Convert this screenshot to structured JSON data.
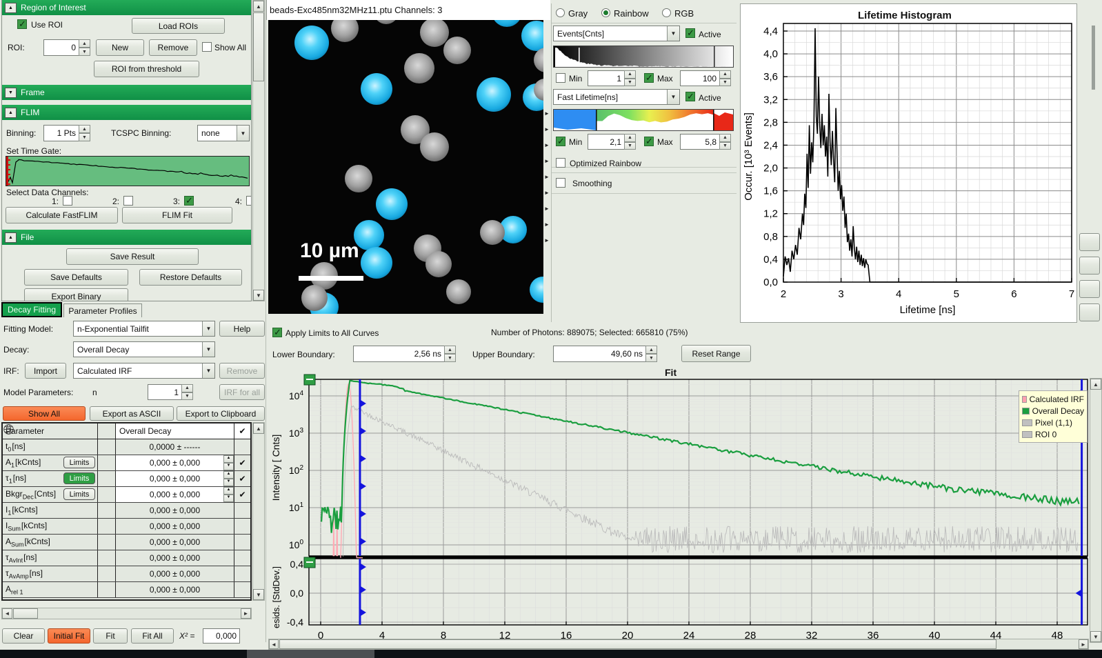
{
  "accent": {
    "green": "#14a04c",
    "orange": "#f4672e",
    "blue_line": "#1414dd"
  },
  "left": {
    "roi": {
      "header": "Region of Interest",
      "use_roi": "Use ROI",
      "load": "Load ROIs",
      "roi_label": "ROI:",
      "roi_value": "0",
      "new": "New",
      "remove": "Remove",
      "show_all": "Show All",
      "threshold": "ROI from threshold"
    },
    "frame": {
      "header": "Frame"
    },
    "flim": {
      "header": "FLIM",
      "binning_label": "Binning:",
      "binning_value": "1 Pts",
      "tcspc_label": "TCSPC Binning:",
      "tcspc_value": "none",
      "time_gate_label": "Set Time Gate:",
      "channels_label": "Select Data Channels:",
      "channels": [
        {
          "label": "1:",
          "checked": false
        },
        {
          "label": "2:",
          "checked": false
        },
        {
          "label": "3:",
          "checked": true
        },
        {
          "label": "4:",
          "checked": false
        }
      ],
      "calc_fastflim": "Calculate FastFLIM",
      "flim_fit": "FLIM Fit"
    },
    "file": {
      "header": "File",
      "save_result": "Save Result",
      "save_defaults": "Save Defaults",
      "restore_defaults": "Restore Defaults",
      "export_binary": "Export Binary"
    },
    "tabs": [
      {
        "label": "Decay Fitting",
        "selected": true
      },
      {
        "label": "Parameter Profiles",
        "selected": false
      }
    ],
    "fitting": {
      "model_label": "Fitting Model:",
      "model_value": "n-Exponential Tailfit",
      "help": "Help",
      "decay_label": "Decay:",
      "decay_value": "Overall Decay",
      "irf_label": "IRF:",
      "import": "Import",
      "irf_value": "Calculated IRF",
      "remove": "Remove",
      "params_label": "Model Parameters:",
      "n_label": "n",
      "n_value": "1",
      "irf_for_all": "IRF for all"
    },
    "actions": {
      "show_all": "Show All",
      "export_ascii": "Export as ASCII",
      "export_clipboard": "Export to Clipboard"
    },
    "table": {
      "param_header": "Parameter",
      "column_header": "Overall Decay",
      "limits_label": "Limits",
      "rows": [
        {
          "base": "t",
          "sub": "0",
          "unit": "[ns]",
          "value": "0,0000 ± ------",
          "limits": null,
          "editable": false,
          "check": false
        },
        {
          "base": "A",
          "sub": "1",
          "unit": "[kCnts]",
          "value": "0,000 ± 0,000",
          "limits": "normal",
          "editable": true,
          "check": true
        },
        {
          "base": "τ",
          "sub": "1",
          "unit": "[ns]",
          "value": "0,000 ± 0,000",
          "limits": "green",
          "editable": true,
          "check": true
        },
        {
          "base": "Bkgr",
          "sub": "Dec",
          "unit": "[Cnts]",
          "value": "0,000 ± 0,000",
          "limits": "normal",
          "editable": true,
          "check": true
        },
        {
          "base": "I",
          "sub": "1",
          "unit": "[kCnts]",
          "value": "0,000 ± 0,000",
          "limits": null,
          "editable": false,
          "check": false
        },
        {
          "base": "I",
          "sub": "Sum",
          "unit": "[kCnts]",
          "value": "0,000 ± 0,000",
          "limits": null,
          "editable": false,
          "check": false
        },
        {
          "base": "A",
          "sub": "Sum",
          "unit": "[kCnts]",
          "value": "0,000 ± 0,000",
          "limits": null,
          "editable": false,
          "check": false
        },
        {
          "base": "τ",
          "sub": "AvInt",
          "unit": "[ns]",
          "value": "0,000 ± 0,000",
          "limits": null,
          "editable": false,
          "check": false
        },
        {
          "base": "τ",
          "sub": "AvAmp",
          "unit": "[ns]",
          "value": "0,000 ± 0,000",
          "limits": null,
          "editable": false,
          "check": false
        },
        {
          "base": "A",
          "sub": "rel 1",
          "unit": "",
          "value": "0,000 ± 0,000",
          "limits": null,
          "editable": false,
          "check": false
        }
      ]
    },
    "footer": {
      "clear": "Clear",
      "initial_fit": "Initial Fit",
      "fit": "Fit",
      "fit_all": "Fit All",
      "chi2_label": "X² =",
      "chi2_value": "0,000"
    }
  },
  "image": {
    "title": "beads-Exc485nm32MHz11.ptu Channels: 3",
    "scale_bar": "10 µm",
    "beads": [
      [
        63,
        33,
        25,
        "cyan"
      ],
      [
        157,
        100,
        23,
        "cyan"
      ],
      [
        327,
        108,
        25,
        "cyan"
      ],
      [
        179,
        267,
        23,
        "cyan"
      ],
      [
        146,
        312,
        22,
        "cyan"
      ],
      [
        157,
        352,
        23,
        "cyan"
      ],
      [
        355,
        304,
        20,
        "cyan"
      ],
      [
        389,
        23,
        22,
        "cyan"
      ],
      [
        389,
        112,
        20,
        "cyan"
      ],
      [
        346,
        -12,
        22,
        "cyan"
      ],
      [
        398,
        391,
        19,
        "cyan"
      ],
      [
        81,
        416,
        21,
        "cyan"
      ],
      [
        111,
        12,
        20,
        "gray"
      ],
      [
        171,
        -12,
        18,
        "gray"
      ],
      [
        241,
        18,
        21,
        "gray"
      ],
      [
        219,
        70,
        22,
        "gray"
      ],
      [
        274,
        44,
        20,
        "gray"
      ],
      [
        213,
        159,
        21,
        "gray"
      ],
      [
        241,
        184,
        21,
        "gray"
      ],
      [
        131,
        230,
        20,
        "gray"
      ],
      [
        81,
        371,
        20,
        "gray"
      ],
      [
        67,
        403,
        19,
        "gray"
      ],
      [
        231,
        331,
        20,
        "gray"
      ],
      [
        247,
        354,
        19,
        "gray"
      ],
      [
        276,
        394,
        18,
        "gray"
      ],
      [
        325,
        308,
        18,
        "gray"
      ],
      [
        403,
        58,
        18,
        "gray"
      ],
      [
        401,
        101,
        16,
        "gray"
      ]
    ]
  },
  "display": {
    "modes": [
      {
        "label": "Gray",
        "selected": false
      },
      {
        "label": "Rainbow",
        "selected": true
      },
      {
        "label": "RGB",
        "selected": false
      }
    ],
    "intensity": {
      "channel": "Events[Cnts]",
      "active_label": "Active",
      "active": true,
      "min_label": "Min",
      "min_checked": false,
      "min_value": "1",
      "max_label": "Max",
      "max_checked": true,
      "max_value": "100"
    },
    "lifetime": {
      "channel": "Fast Lifetime[ns]",
      "active_label": "Active",
      "active": true,
      "min_label": "Min",
      "min_checked": true,
      "min_value": "2,1",
      "max_label": "Max",
      "max_checked": true,
      "max_value": "5,8"
    },
    "optimized_rainbow": "Optimized Rainbow",
    "smoothing": "Smoothing"
  },
  "fit_controls": {
    "apply_limits": "Apply Limits to All Curves",
    "photons": "Number of Photons: 889075; Selected: 665810 (75%)",
    "lower_label": "Lower Boundary:",
    "lower_value": "2,56 ns",
    "upper_label": "Upper Boundary:",
    "upper_value": "49,60 ns",
    "reset": "Reset Range"
  },
  "chart_data": [
    {
      "type": "line",
      "title": "Lifetime Histogram",
      "xlabel": "Lifetime [ns]",
      "ylabel": "Occur. [10³ Events]",
      "xlim": [
        2,
        7
      ],
      "ylim": [
        0,
        4.6
      ],
      "y_ticks": [
        "0,0",
        "0,4",
        "0,8",
        "1,2",
        "1,6",
        "2,0",
        "2,4",
        "2,8",
        "3,2",
        "3,6",
        "4,0",
        "4,4"
      ],
      "x_ticks": [
        2,
        3,
        4,
        5,
        6,
        7
      ],
      "grid": true,
      "line_color": "#000000",
      "points": [
        [
          2.0,
          0.1
        ],
        [
          2.03,
          0.45
        ],
        [
          2.06,
          0.3
        ],
        [
          2.09,
          0.42
        ],
        [
          2.12,
          0.18
        ],
        [
          2.15,
          0.55
        ],
        [
          2.18,
          0.4
        ],
        [
          2.21,
          0.65
        ],
        [
          2.24,
          0.48
        ],
        [
          2.27,
          0.95
        ],
        [
          2.3,
          0.75
        ],
        [
          2.33,
          1.2
        ],
        [
          2.35,
          1.0
        ],
        [
          2.37,
          1.55
        ],
        [
          2.39,
          1.3
        ],
        [
          2.41,
          2.25
        ],
        [
          2.43,
          1.65
        ],
        [
          2.45,
          2.75
        ],
        [
          2.47,
          1.9
        ],
        [
          2.49,
          2.45
        ],
        [
          2.51,
          2.1
        ],
        [
          2.53,
          2.8
        ],
        [
          2.55,
          4.45
        ],
        [
          2.57,
          2.9
        ],
        [
          2.59,
          2.6
        ],
        [
          2.61,
          3.6
        ],
        [
          2.63,
          2.75
        ],
        [
          2.65,
          2.35
        ],
        [
          2.67,
          2.95
        ],
        [
          2.69,
          2.4
        ],
        [
          2.71,
          2.75
        ],
        [
          2.73,
          2.2
        ],
        [
          2.75,
          2.55
        ],
        [
          2.77,
          1.85
        ],
        [
          2.79,
          3.3
        ],
        [
          2.81,
          2.45
        ],
        [
          2.83,
          2.05
        ],
        [
          2.85,
          2.65
        ],
        [
          2.87,
          2.15
        ],
        [
          2.89,
          1.75
        ],
        [
          2.91,
          3.05
        ],
        [
          2.93,
          2.3
        ],
        [
          2.95,
          1.6
        ],
        [
          2.97,
          1.95
        ],
        [
          2.99,
          1.45
        ],
        [
          3.01,
          1.7
        ],
        [
          3.03,
          1.25
        ],
        [
          3.05,
          1.5
        ],
        [
          3.07,
          0.95
        ],
        [
          3.09,
          1.2
        ],
        [
          3.11,
          0.7
        ],
        [
          3.13,
          0.85
        ],
        [
          3.15,
          0.55
        ],
        [
          3.17,
          0.75
        ],
        [
          3.19,
          0.45
        ],
        [
          3.21,
          0.98
        ],
        [
          3.23,
          0.6
        ],
        [
          3.25,
          0.4
        ],
        [
          3.27,
          0.62
        ],
        [
          3.29,
          0.35
        ],
        [
          3.31,
          0.55
        ],
        [
          3.33,
          0.3
        ],
        [
          3.35,
          0.48
        ],
        [
          3.37,
          0.28
        ],
        [
          3.39,
          0.42
        ],
        [
          3.41,
          0.25
        ],
        [
          3.43,
          0.4
        ],
        [
          3.45,
          0.32
        ],
        [
          3.47,
          0.3
        ],
        [
          3.5,
          0.0
        ],
        [
          7.0,
          0.0
        ]
      ]
    },
    {
      "type": "line",
      "title": "Fit",
      "xlabel": "",
      "ylabel": "Intensity [ Cnts]",
      "ylabel_residuals": "esids. [StdDev.]",
      "x_ticks": [
        0,
        4,
        8,
        12,
        16,
        20,
        24,
        28,
        32,
        36,
        40,
        44,
        48
      ],
      "xlim": [
        0,
        49.6
      ],
      "y_log_decades": [
        0,
        1,
        2,
        3,
        4
      ],
      "residual_ticks": [
        "0,4",
        "0,0",
        "-0,4"
      ],
      "lower_boundary_ns": 2.56,
      "upper_boundary_ns": 49.6,
      "legend": [
        {
          "name": "Calculated IRF",
          "color": "#ff9fae"
        },
        {
          "name": "Overall Decay",
          "color": "#1a9e3f"
        },
        {
          "name": "Pixel (1,1)",
          "color": "#c0c0c0"
        },
        {
          "name": "ROI 0",
          "color": "#c0c0c0"
        }
      ],
      "series": [
        {
          "name": "Calculated IRF",
          "color": "#ffaab4",
          "kind": "irf",
          "peak": 21000,
          "center": 1.82,
          "sigma": 0.11
        },
        {
          "name": "Pixel (1,1)",
          "color": "#bbbbbb",
          "kind": "pixel",
          "peak": 5200,
          "peak_t": 2.0,
          "tau": 2.2,
          "floor": 1.0
        },
        {
          "name": "Overall Decay",
          "color": "#1a9e3f",
          "kind": "decay",
          "peak": 26000,
          "peak_t": 1.9,
          "tau": 5.6,
          "pre_level": 5
        }
      ]
    }
  ]
}
